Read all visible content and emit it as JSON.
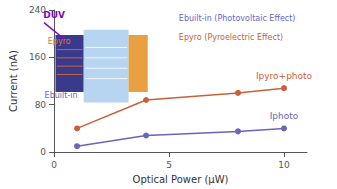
{
  "chart_data": {
    "type": "line",
    "xlabel": "Optical Power (μW)",
    "ylabel": "Current (nA)",
    "xlim": [
      0,
      11
    ],
    "xticks": [
      0,
      5,
      10
    ],
    "ylim": [
      0,
      240
    ],
    "yticks": [
      0,
      80,
      160,
      240
    ],
    "grid": false,
    "series": [
      {
        "name": "Ipyro+photo",
        "color": "#C8603A",
        "marker": "circle",
        "x": [
          1,
          4,
          8,
          10
        ],
        "values": [
          40,
          88,
          100,
          108
        ]
      },
      {
        "name": "Iphoto",
        "color": "#6666BB",
        "marker": "circle",
        "x": [
          1,
          4,
          8,
          10
        ],
        "values": [
          10,
          28,
          35,
          40
        ]
      }
    ],
    "annotations": [
      {
        "text": "Ebuilt-in (Photovoltaic Effect)",
        "color": "#6666CC"
      },
      {
        "text": "Epyro (Pyroelectric Effect)",
        "color": "#C8603A"
      },
      {
        "text": "DUV",
        "color": "#8800CC"
      },
      {
        "text": "Epyro",
        "color": "#E87030"
      },
      {
        "text": "Ebuilt-in",
        "color": "#6666CC"
      }
    ]
  }
}
